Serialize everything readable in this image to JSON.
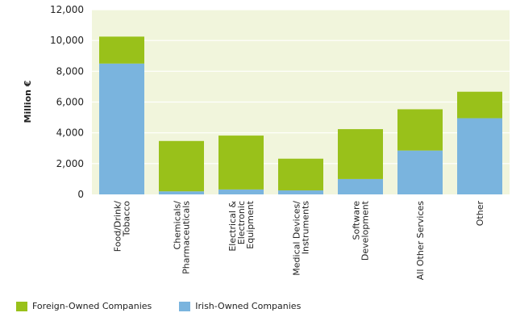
{
  "chart_data": {
    "type": "bar",
    "stacked": true,
    "ylabel": "Million €",
    "ylim": [
      0,
      12000
    ],
    "yticks": [
      0,
      2000,
      4000,
      6000,
      8000,
      10000,
      12000
    ],
    "ytick_labels": [
      "0",
      "2,000",
      "4,000",
      "6,000",
      "8,000",
      "10,000",
      "12,000"
    ],
    "categories": [
      [
        "Food/Drink/",
        "Tobacco"
      ],
      [
        "Chemicals/",
        "Pharmaceuticals"
      ],
      [
        "Electrical &",
        "Electronic",
        "Equipment"
      ],
      [
        "Medical Devices/",
        "Instruments"
      ],
      [
        "Software",
        "Development"
      ],
      [
        "All Other Services"
      ],
      [
        "Other"
      ]
    ],
    "series": [
      {
        "name": "Irish-Owned Companies",
        "color": "#7ab4de",
        "values": [
          8500,
          200,
          320,
          260,
          1000,
          2850,
          4950
        ]
      },
      {
        "name": "Foreign-Owned Companies",
        "color": "#99c11a",
        "values": [
          1750,
          3270,
          3500,
          2060,
          3240,
          2680,
          1720
        ]
      }
    ],
    "plot_background": "#f1f5dc",
    "grid": true,
    "legend_position": "bottom-left"
  }
}
